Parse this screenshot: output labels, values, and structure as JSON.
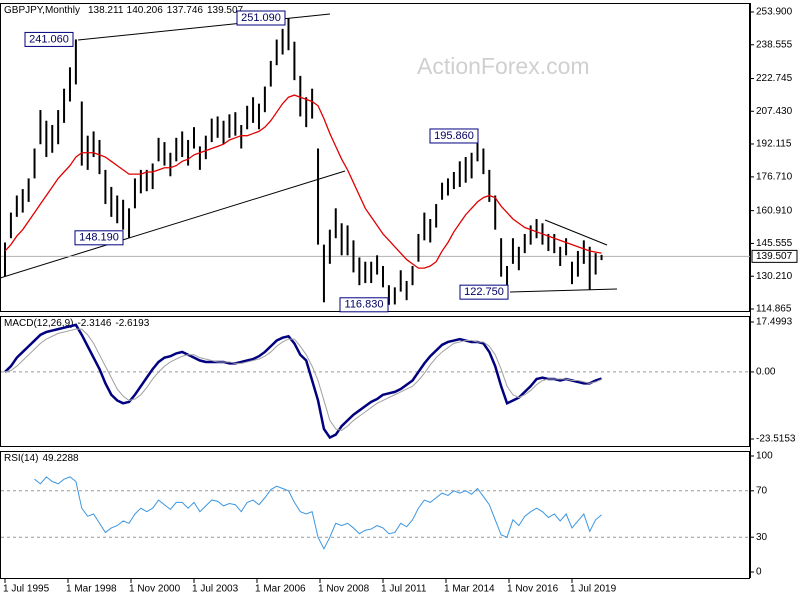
{
  "chart_data": [
    {
      "type": "hilo",
      "title": "GBPJPY,Monthly",
      "ohlc": [
        138.211,
        140.206,
        137.746,
        139.507
      ],
      "watermark": "ActionForex.com",
      "color": "#000000",
      "x": [
        0,
        3,
        6,
        9,
        12,
        15,
        18,
        21,
        24,
        27,
        30,
        33,
        36,
        39,
        42,
        45,
        48,
        51,
        54,
        57,
        60,
        63,
        66,
        69,
        72,
        75,
        78,
        81,
        84,
        87,
        90,
        93,
        96,
        99,
        102,
        105,
        108,
        111,
        114,
        117,
        120,
        123,
        126,
        129,
        132,
        135,
        138,
        141,
        144,
        147,
        150,
        153,
        156,
        159,
        162,
        165,
        168,
        171,
        174,
        177,
        180,
        183,
        186,
        189,
        192,
        195,
        198,
        201,
        204,
        207,
        210,
        213,
        216,
        219,
        222,
        225,
        228,
        231,
        234,
        237,
        240,
        243,
        246,
        249,
        252,
        255,
        258,
        261,
        264,
        267,
        270,
        273,
        276,
        279,
        282,
        285,
        288,
        291,
        294,
        297,
        300,
        303
      ],
      "high": [
        146,
        160,
        168,
        171,
        176,
        190,
        208,
        203,
        201,
        208,
        218,
        228,
        241.06,
        212,
        196,
        198,
        194,
        180,
        172,
        168,
        166,
        162,
        176,
        180,
        180,
        183,
        195,
        193,
        188,
        195,
        198,
        194,
        200,
        191,
        196,
        204,
        205,
        203,
        206,
        207,
        201,
        210,
        214,
        211,
        219,
        231,
        241,
        246,
        251.09,
        240,
        224,
        214,
        218,
        190,
        145,
        152,
        162,
        155,
        154,
        147,
        139,
        137,
        137,
        140,
        135,
        126,
        125,
        133,
        128,
        135,
        150,
        160,
        157,
        164,
        174,
        176,
        179,
        184,
        186,
        188,
        195.86,
        190,
        180,
        168,
        148,
        135,
        148,
        144,
        150,
        154,
        157,
        155,
        150,
        150,
        144,
        148,
        137,
        142,
        147,
        144,
        141,
        140.206
      ],
      "low": [
        130,
        148,
        158,
        160,
        165,
        176,
        192,
        186,
        188,
        192,
        202,
        212,
        220,
        182,
        180,
        186,
        178,
        164,
        158,
        155,
        152,
        148.19,
        162,
        169,
        170,
        171,
        184,
        182,
        177,
        184,
        186,
        182,
        190,
        180,
        185,
        193,
        195,
        192,
        195,
        196,
        190,
        199,
        202,
        199,
        207,
        219,
        229,
        234,
        236,
        222,
        205,
        200,
        204,
        145,
        118,
        136,
        148,
        140,
        140,
        132,
        126,
        127,
        127,
        131,
        125,
        116.83,
        117,
        123,
        119,
        126,
        137,
        147,
        146,
        153,
        166,
        168,
        171,
        172,
        174,
        176,
        184,
        178,
        165,
        152,
        130,
        122.75,
        136,
        133,
        141,
        145,
        148,
        145,
        142,
        141,
        135,
        140,
        126.5,
        130,
        136,
        124,
        131,
        137.746
      ],
      "ma": {
        "color": "#e00000",
        "values": [
          142,
          145,
          149,
          152,
          156,
          160,
          164,
          168,
          172,
          176,
          179,
          182,
          186,
          188,
          188,
          188,
          187,
          186,
          184,
          182,
          180,
          178,
          178,
          178,
          179,
          179,
          180,
          181,
          181,
          182,
          184,
          185,
          187,
          188,
          189,
          190,
          191,
          192,
          194,
          195,
          196,
          196,
          197,
          198,
          200,
          203,
          207,
          211,
          214,
          215,
          214,
          213,
          212,
          210,
          204,
          197,
          191,
          185,
          180,
          174,
          168,
          162,
          158,
          154,
          150,
          147,
          144,
          141,
          138,
          136,
          134,
          134,
          135,
          137,
          142,
          146,
          151,
          155,
          159,
          162,
          165,
          167,
          168,
          167,
          163,
          160,
          157,
          155,
          153,
          152,
          151,
          150,
          149,
          148,
          147,
          146,
          145,
          144,
          143,
          142,
          141.5,
          141
        ]
      },
      "annotations": [
        {
          "value": 241.06,
          "label": "241.060"
        },
        {
          "value": 251.09,
          "label": "251.090"
        },
        {
          "value": 148.19,
          "label": "148.190"
        },
        {
          "value": 116.83,
          "label": "116.830"
        },
        {
          "value": 195.86,
          "label": "195.860"
        },
        {
          "value": 122.75,
          "label": "122.750"
        }
      ],
      "xlim": [
        -2.54,
        378.41
      ],
      "xticks": [
        {
          "value": 0,
          "label": "1 Jul 1995"
        },
        {
          "value": 32,
          "label": "1 Mar 1998"
        },
        {
          "value": 64,
          "label": "1 Nov 2000"
        },
        {
          "value": 96,
          "label": "1 Jul 2003"
        },
        {
          "value": 128,
          "label": "1 Mar 2006"
        },
        {
          "value": 160,
          "label": "1 Nov 2008"
        },
        {
          "value": 192,
          "label": "1 Jul 2011"
        },
        {
          "value": 224,
          "label": "1 Mar 2014"
        },
        {
          "value": 256,
          "label": "1 Nov 2016"
        },
        {
          "value": 288,
          "label": "1 Jul 2019"
        }
      ],
      "ylim": [
        114.865,
        253.9
      ],
      "yticks": [
        {
          "value": 253.9,
          "label": "253.900"
        },
        238.555,
        222.745,
        {
          "value": 207.43,
          "label": "207.430"
        },
        192.115,
        {
          "value": 176.71,
          "label": "176.710"
        },
        {
          "value": 160.91,
          "label": "160.910"
        },
        145.555,
        {
          "value": 130.21,
          "label": "130.210"
        },
        114.865
      ],
      "grid": false
    },
    {
      "type": "line",
      "title": "MACD(12,26,9)",
      "series": [
        {
          "color": "#000080",
          "values": [
            0,
            2,
            5,
            7,
            9,
            11,
            13,
            14,
            14.5,
            15,
            15.5,
            16,
            16.5,
            13,
            9,
            5,
            1,
            -4,
            -8,
            -10,
            -11,
            -10.5,
            -8,
            -5,
            -2,
            1,
            3.5,
            5,
            5.5,
            6.5,
            7,
            6,
            5,
            4,
            3.5,
            3.5,
            3.5,
            3.5,
            3,
            3,
            3.5,
            4,
            4.5,
            5.5,
            7,
            9,
            11,
            12,
            12.5,
            10,
            6,
            4,
            -3,
            -10,
            -20,
            -23,
            -22,
            -19,
            -17,
            -15,
            -13.5,
            -12,
            -10.5,
            -9.5,
            -8,
            -7.5,
            -7,
            -6,
            -4.5,
            -3,
            0,
            3,
            5.5,
            7.5,
            9.5,
            10.5,
            11,
            11.5,
            11,
            10.5,
            10.5,
            10,
            7,
            2,
            -5,
            -11,
            -10,
            -9,
            -7,
            -5,
            -2.5,
            -2,
            -2.5,
            -2.5,
            -3,
            -2.5,
            -3,
            -3.5,
            -4,
            -4,
            -3,
            -2.3146
          ]
        },
        {
          "color": "#a0a0a0",
          "values": [
            0,
            0.5,
            2,
            4,
            6,
            8,
            10,
            11.5,
            12.5,
            13.5,
            14,
            14.5,
            15,
            15,
            13,
            10,
            6,
            2,
            -2,
            -6,
            -8.5,
            -10,
            -9.5,
            -8,
            -5.5,
            -2.5,
            0,
            2,
            3.5,
            4.5,
            5.5,
            6,
            6,
            5,
            4.5,
            4,
            3.5,
            3.5,
            3.5,
            3,
            3,
            3.5,
            4,
            4.5,
            5.5,
            7,
            9,
            10.5,
            11.5,
            11.5,
            9,
            6,
            2,
            -3,
            -10,
            -17,
            -20,
            -20.5,
            -19,
            -17,
            -15.5,
            -14,
            -12.5,
            -11,
            -10,
            -9,
            -8,
            -7,
            -6,
            -5,
            -3,
            -0.5,
            2.5,
            5,
            7,
            8.5,
            10,
            10.5,
            11,
            11,
            10.5,
            10.5,
            9,
            6,
            1,
            -5,
            -8,
            -9,
            -8,
            -6.5,
            -4.5,
            -3,
            -2.5,
            -2.5,
            -2.5,
            -2.5,
            -3,
            -3,
            -3.5,
            -4,
            -3.5,
            -2.6193
          ]
        }
      ],
      "ylim": [
        -23.5153,
        17.4993
      ],
      "yticks": [
        17.4993,
        {
          "value": 0,
          "label": "0.00"
        },
        -23.5153
      ],
      "grid": true
    },
    {
      "type": "line",
      "title": "RSI(14)",
      "series": [
        {
          "color": "#3c96e0",
          "values": [
            null,
            null,
            null,
            null,
            null,
            80,
            76,
            82,
            78,
            76,
            80,
            82,
            78,
            55,
            48,
            50,
            42,
            34,
            38,
            40,
            44,
            42,
            50,
            55,
            52,
            55,
            62,
            58,
            54,
            60,
            60,
            55,
            60,
            52,
            57,
            62,
            61,
            57,
            59,
            58,
            52,
            60,
            62,
            58,
            64,
            71,
            74,
            72,
            70,
            60,
            52,
            50,
            52,
            30,
            20,
            30,
            42,
            40,
            42,
            38,
            33,
            36,
            37,
            40,
            38,
            33,
            34,
            42,
            39,
            45,
            55,
            62,
            60,
            64,
            68,
            66,
            70,
            68,
            70,
            67,
            72,
            65,
            58,
            45,
            32,
            30,
            45,
            40,
            48,
            52,
            55,
            52,
            47,
            50,
            44,
            50,
            38,
            44,
            50,
            35,
            45,
            49.2288
          ]
        }
      ],
      "ylim": [
        0,
        100
      ],
      "yticks": [
        100,
        70,
        30,
        0
      ],
      "grid": true
    }
  ]
}
